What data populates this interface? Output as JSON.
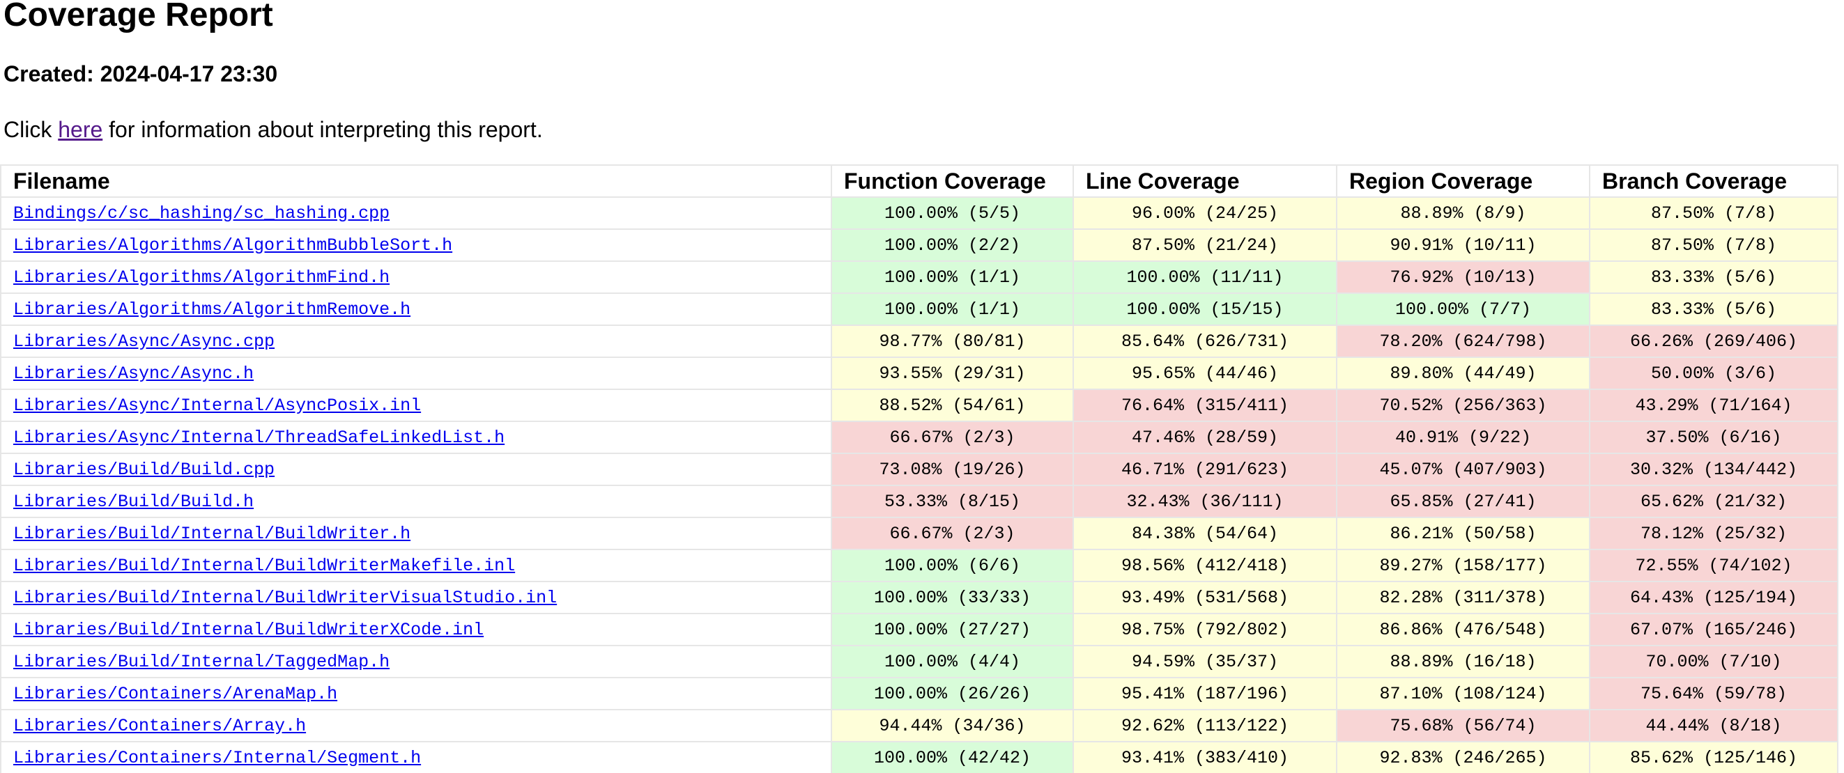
{
  "title": "Coverage Report",
  "created": "Created: 2024-04-17 23:30",
  "info": {
    "prefix": "Click ",
    "link": "here",
    "suffix": " for information about interpreting this report."
  },
  "colors": {
    "good": "#d8fcd9",
    "medium": "#fefed9",
    "bad": "#f8d5d5",
    "link": "#0000ee",
    "visited_link": "#551a8b"
  },
  "table": {
    "headers": [
      "Filename",
      "Function Coverage",
      "Line Coverage",
      "Region Coverage",
      "Branch Coverage"
    ],
    "rows": [
      {
        "file": "Bindings/c/sc_hashing/sc_hashing.cpp",
        "cells": [
          [
            "100.00% (5/5)",
            "green"
          ],
          [
            "96.00% (24/25)",
            "yellow"
          ],
          [
            "88.89% (8/9)",
            "yellow"
          ],
          [
            "87.50% (7/8)",
            "yellow"
          ]
        ]
      },
      {
        "file": "Libraries/Algorithms/AlgorithmBubbleSort.h",
        "cells": [
          [
            "100.00% (2/2)",
            "green"
          ],
          [
            "87.50% (21/24)",
            "yellow"
          ],
          [
            "90.91% (10/11)",
            "yellow"
          ],
          [
            "87.50% (7/8)",
            "yellow"
          ]
        ]
      },
      {
        "file": "Libraries/Algorithms/AlgorithmFind.h",
        "cells": [
          [
            "100.00% (1/1)",
            "green"
          ],
          [
            "100.00% (11/11)",
            "green"
          ],
          [
            "76.92% (10/13)",
            "red"
          ],
          [
            "83.33% (5/6)",
            "yellow"
          ]
        ]
      },
      {
        "file": "Libraries/Algorithms/AlgorithmRemove.h",
        "cells": [
          [
            "100.00% (1/1)",
            "green"
          ],
          [
            "100.00% (15/15)",
            "green"
          ],
          [
            "100.00% (7/7)",
            "green"
          ],
          [
            "83.33% (5/6)",
            "yellow"
          ]
        ]
      },
      {
        "file": "Libraries/Async/Async.cpp",
        "cells": [
          [
            "98.77% (80/81)",
            "yellow"
          ],
          [
            "85.64% (626/731)",
            "yellow"
          ],
          [
            "78.20% (624/798)",
            "red"
          ],
          [
            "66.26% (269/406)",
            "red"
          ]
        ]
      },
      {
        "file": "Libraries/Async/Async.h",
        "cells": [
          [
            "93.55% (29/31)",
            "yellow"
          ],
          [
            "95.65% (44/46)",
            "yellow"
          ],
          [
            "89.80% (44/49)",
            "yellow"
          ],
          [
            "50.00% (3/6)",
            "red"
          ]
        ]
      },
      {
        "file": "Libraries/Async/Internal/AsyncPosix.inl",
        "cells": [
          [
            "88.52% (54/61)",
            "yellow"
          ],
          [
            "76.64% (315/411)",
            "red"
          ],
          [
            "70.52% (256/363)",
            "red"
          ],
          [
            "43.29% (71/164)",
            "red"
          ]
        ]
      },
      {
        "file": "Libraries/Async/Internal/ThreadSafeLinkedList.h",
        "cells": [
          [
            "66.67% (2/3)",
            "red"
          ],
          [
            "47.46% (28/59)",
            "red"
          ],
          [
            "40.91% (9/22)",
            "red"
          ],
          [
            "37.50% (6/16)",
            "red"
          ]
        ]
      },
      {
        "file": "Libraries/Build/Build.cpp",
        "cells": [
          [
            "73.08% (19/26)",
            "red"
          ],
          [
            "46.71% (291/623)",
            "red"
          ],
          [
            "45.07% (407/903)",
            "red"
          ],
          [
            "30.32% (134/442)",
            "red"
          ]
        ]
      },
      {
        "file": "Libraries/Build/Build.h",
        "cells": [
          [
            "53.33% (8/15)",
            "red"
          ],
          [
            "32.43% (36/111)",
            "red"
          ],
          [
            "65.85% (27/41)",
            "red"
          ],
          [
            "65.62% (21/32)",
            "red"
          ]
        ]
      },
      {
        "file": "Libraries/Build/Internal/BuildWriter.h",
        "cells": [
          [
            "66.67% (2/3)",
            "red"
          ],
          [
            "84.38% (54/64)",
            "yellow"
          ],
          [
            "86.21% (50/58)",
            "yellow"
          ],
          [
            "78.12% (25/32)",
            "red"
          ]
        ]
      },
      {
        "file": "Libraries/Build/Internal/BuildWriterMakefile.inl",
        "cells": [
          [
            "100.00% (6/6)",
            "green"
          ],
          [
            "98.56% (412/418)",
            "yellow"
          ],
          [
            "89.27% (158/177)",
            "yellow"
          ],
          [
            "72.55% (74/102)",
            "red"
          ]
        ]
      },
      {
        "file": "Libraries/Build/Internal/BuildWriterVisualStudio.inl",
        "cells": [
          [
            "100.00% (33/33)",
            "green"
          ],
          [
            "93.49% (531/568)",
            "yellow"
          ],
          [
            "82.28% (311/378)",
            "yellow"
          ],
          [
            "64.43% (125/194)",
            "red"
          ]
        ]
      },
      {
        "file": "Libraries/Build/Internal/BuildWriterXCode.inl",
        "cells": [
          [
            "100.00% (27/27)",
            "green"
          ],
          [
            "98.75% (792/802)",
            "yellow"
          ],
          [
            "86.86% (476/548)",
            "yellow"
          ],
          [
            "67.07% (165/246)",
            "red"
          ]
        ]
      },
      {
        "file": "Libraries/Build/Internal/TaggedMap.h",
        "cells": [
          [
            "100.00% (4/4)",
            "green"
          ],
          [
            "94.59% (35/37)",
            "yellow"
          ],
          [
            "88.89% (16/18)",
            "yellow"
          ],
          [
            "70.00% (7/10)",
            "red"
          ]
        ]
      },
      {
        "file": "Libraries/Containers/ArenaMap.h",
        "cells": [
          [
            "100.00% (26/26)",
            "green"
          ],
          [
            "95.41% (187/196)",
            "yellow"
          ],
          [
            "87.10% (108/124)",
            "yellow"
          ],
          [
            "75.64% (59/78)",
            "red"
          ]
        ]
      },
      {
        "file": "Libraries/Containers/Array.h",
        "cells": [
          [
            "94.44% (34/36)",
            "yellow"
          ],
          [
            "92.62% (113/122)",
            "yellow"
          ],
          [
            "75.68% (56/74)",
            "red"
          ],
          [
            "44.44% (8/18)",
            "red"
          ]
        ]
      },
      {
        "file": "Libraries/Containers/Internal/Segment.h",
        "cells": [
          [
            "100.00% (42/42)",
            "green"
          ],
          [
            "93.41% (383/410)",
            "yellow"
          ],
          [
            "92.83% (246/265)",
            "yellow"
          ],
          [
            "85.62% (125/146)",
            "yellow"
          ]
        ]
      }
    ]
  }
}
